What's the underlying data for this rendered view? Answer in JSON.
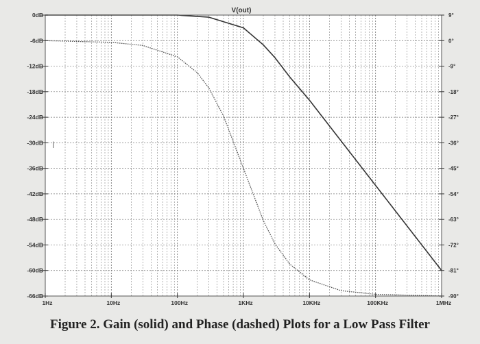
{
  "figure_caption": "Figure 2. Gain (solid) and Phase (dashed) Plots for a Low Pass Filter",
  "chart_data": {
    "type": "line",
    "title": "V(out)",
    "xscale": "log",
    "xlim": [
      1,
      1000000
    ],
    "x_tick_values": [
      1,
      10,
      100,
      1000,
      10000,
      100000,
      1000000
    ],
    "x_tick_labels": [
      "1Hz",
      "10Hz",
      "100Hz",
      "1KHz",
      "10KHz",
      "100KHz",
      "1MHz"
    ],
    "y_left": {
      "lim": [
        -66,
        0
      ],
      "tick_values": [
        0,
        -6,
        -12,
        -18,
        -24,
        -30,
        -36,
        -42,
        -48,
        -54,
        -60,
        -66
      ],
      "tick_labels": [
        "0dB",
        "-6dB",
        "-12dB",
        "-18dB",
        "-24dB",
        "-30dB",
        "-36dB",
        "-42dB",
        "-48dB",
        "-54dB",
        "-60dB",
        "-66dB"
      ]
    },
    "y_right": {
      "lim": [
        -90,
        9
      ],
      "tick_values": [
        9,
        0,
        -9,
        -18,
        -27,
        -36,
        -45,
        -54,
        -63,
        -72,
        -81,
        -90
      ],
      "tick_labels": [
        "9°",
        "0°",
        "-9°",
        "-18°",
        "-27°",
        "-36°",
        "-45°",
        "-54°",
        "-63°",
        "-72°",
        "-81°",
        "-90°"
      ]
    },
    "grid": true,
    "series": [
      {
        "style": "solid",
        "axis": "left",
        "color": "#333333",
        "x": [
          1,
          100,
          300,
          1000,
          2000,
          3000,
          5000,
          10000,
          100000,
          1000000
        ],
        "y": [
          0,
          0,
          -0.5,
          -3,
          -7,
          -10,
          -14.5,
          -20,
          -40,
          -60
        ]
      },
      {
        "style": "dashed",
        "axis": "right",
        "color": "#555555",
        "x": [
          1,
          10,
          30,
          100,
          200,
          300,
          500,
          1000,
          2000,
          3000,
          5000,
          10000,
          30000,
          100000,
          1000000
        ],
        "y": [
          0,
          -0.6,
          -1.7,
          -5.7,
          -11.3,
          -16.7,
          -26.6,
          -45,
          -63.4,
          -71.6,
          -78.7,
          -84.3,
          -88.1,
          -89.4,
          -90
        ]
      }
    ]
  }
}
